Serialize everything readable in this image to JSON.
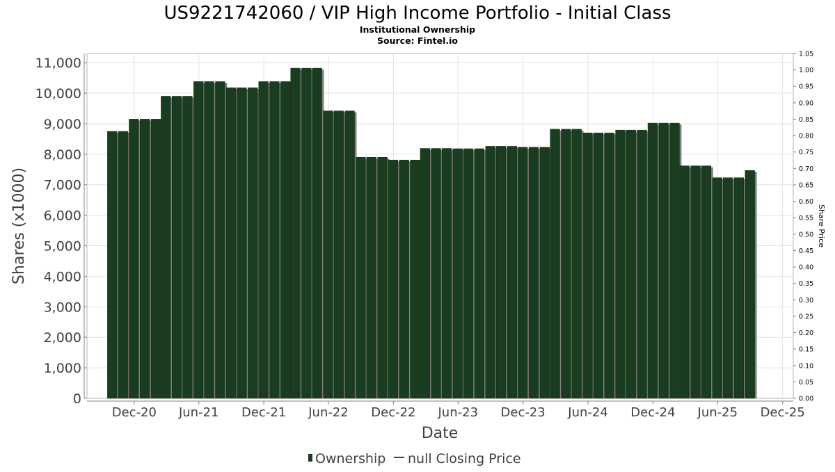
{
  "chart_data": {
    "type": "bar",
    "title": "US9221742060 / VIP High Income Portfolio - Initial Class",
    "subtitle_lines": [
      "Institutional Ownership",
      "Source: Fintel.io"
    ],
    "xlabel": "Date",
    "ylabel": "Shares (x1000)",
    "y2label": "Share Price",
    "ylim": [
      0,
      11300
    ],
    "y2lim": [
      0,
      1.05
    ],
    "yticks": [
      0,
      1000,
      2000,
      3000,
      4000,
      5000,
      6000,
      7000,
      8000,
      9000,
      10000,
      11000
    ],
    "ytick_labels": [
      "0",
      "1,000",
      "2,000",
      "3,000",
      "4,000",
      "5,000",
      "6,000",
      "7,000",
      "8,000",
      "9,000",
      "10,000",
      "11,000"
    ],
    "y2ticks": [
      0,
      0.05,
      0.1,
      0.15,
      0.2,
      0.25,
      0.3,
      0.35,
      0.4,
      0.45,
      0.5,
      0.55,
      0.6,
      0.65,
      0.7,
      0.75,
      0.8,
      0.85,
      0.9,
      0.95,
      1.0,
      1.05
    ],
    "y2tick_labels": [
      "0.00",
      "0.05",
      "0.10",
      "0.15",
      "0.20",
      "0.25",
      "0.30",
      "0.35",
      "0.40",
      "0.45",
      "0.50",
      "0.55",
      "0.60",
      "0.65",
      "0.70",
      "0.75",
      "0.80",
      "0.85",
      "0.90",
      "0.95",
      "1.00",
      "1.05"
    ],
    "xlim": [
      "2020-07-21",
      "2025-12-31"
    ],
    "xticks": [
      "2020-12-01",
      "2021-06-01",
      "2021-12-01",
      "2022-06-01",
      "2022-12-01",
      "2023-06-01",
      "2023-12-01",
      "2024-06-01",
      "2024-12-01",
      "2025-06-01",
      "2025-12-01"
    ],
    "xtick_labels": [
      "Dec-20",
      "Jun-21",
      "Dec-21",
      "Jun-22",
      "Dec-22",
      "Jun-23",
      "Dec-23",
      "Jun-24",
      "Dec-24",
      "Jun-25",
      "Dec-25"
    ],
    "grid": true,
    "legend_position": "bottom-center",
    "series": [
      {
        "name": "Ownership",
        "color": "#1a3d1f",
        "x": [
          "2020-09-30",
          "2020-10-31",
          "2020-11-30",
          "2020-12-31",
          "2021-01-31",
          "2021-02-28",
          "2021-03-31",
          "2021-04-30",
          "2021-05-31",
          "2021-06-30",
          "2021-07-31",
          "2021-08-31",
          "2021-09-30",
          "2021-10-31",
          "2021-11-30",
          "2021-12-31",
          "2022-01-31",
          "2022-02-28",
          "2022-03-31",
          "2022-04-30",
          "2022-05-31",
          "2022-06-30",
          "2022-07-31",
          "2022-08-31",
          "2022-09-30",
          "2022-10-31",
          "2022-11-30",
          "2022-12-31",
          "2023-01-31",
          "2023-02-28",
          "2023-03-31",
          "2023-04-30",
          "2023-05-31",
          "2023-06-30",
          "2023-07-31",
          "2023-08-31",
          "2023-09-30",
          "2023-10-31",
          "2023-11-30",
          "2023-12-31",
          "2024-01-31",
          "2024-02-29",
          "2024-03-31",
          "2024-04-30",
          "2024-05-31",
          "2024-06-30",
          "2024-07-31",
          "2024-08-31",
          "2024-09-30",
          "2024-10-31",
          "2024-11-30",
          "2024-12-31",
          "2025-01-31",
          "2025-02-28",
          "2025-03-31",
          "2025-04-30",
          "2025-05-31",
          "2025-06-30",
          "2025-07-31",
          "2025-08-31"
        ],
        "values": [
          8750,
          8750,
          9150,
          9150,
          9150,
          9900,
          9900,
          9900,
          10380,
          10380,
          10380,
          10180,
          10180,
          10180,
          10380,
          10380,
          10380,
          10820,
          10820,
          10820,
          9420,
          9420,
          9420,
          7900,
          7900,
          7900,
          7810,
          7810,
          7810,
          8190,
          8190,
          8190,
          8180,
          8180,
          8180,
          8260,
          8260,
          8260,
          8230,
          8230,
          8230,
          8820,
          8820,
          8820,
          8700,
          8700,
          8700,
          8790,
          8790,
          8790,
          9020,
          9020,
          9020,
          7620,
          7620,
          7620,
          7230,
          7230,
          7230,
          7470
        ]
      },
      {
        "name": "null Closing Price",
        "color": "#555555",
        "values": []
      }
    ]
  }
}
